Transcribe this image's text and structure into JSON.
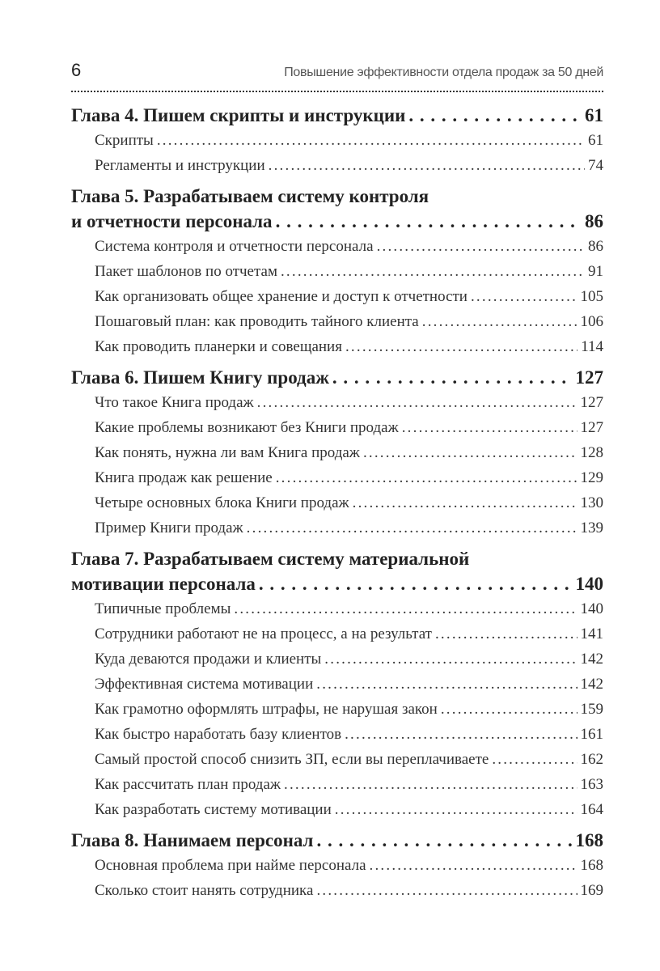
{
  "header": {
    "page_number": "6",
    "running_title": "Повышение эффективности отдела продаж за 50 дней"
  },
  "chapters": [
    {
      "title_lines": [
        "Глава 4. Пишем скрипты и инструкции"
      ],
      "page": "61",
      "entries": [
        {
          "title": "Скрипты",
          "page": "61"
        },
        {
          "title": "Регламенты и инструкции",
          "page": "74"
        }
      ]
    },
    {
      "title_lines": [
        "Глава 5. Разрабатываем систему контроля",
        "и отчетности персонала"
      ],
      "page": "86",
      "entries": [
        {
          "title": "Система контроля и отчетности персонала",
          "page": "86"
        },
        {
          "title": "Пакет шаблонов по отчетам",
          "page": "91"
        },
        {
          "title": "Как организовать общее хранение и доступ к отчетности",
          "page": "105"
        },
        {
          "title": "Пошаговый план: как проводить тайного клиента",
          "page": "106"
        },
        {
          "title": "Как проводить планерки и совещания",
          "page": "114"
        }
      ]
    },
    {
      "title_lines": [
        "Глава 6. Пишем Книгу продаж"
      ],
      "page": "127",
      "entries": [
        {
          "title": "Что такое Книга продаж",
          "page": "127"
        },
        {
          "title": "Какие проблемы возникают без Книги продаж",
          "page": "127"
        },
        {
          "title": "Как понять, нужна ли вам Книга продаж",
          "page": "128"
        },
        {
          "title": "Книга продаж как решение",
          "page": "129"
        },
        {
          "title": "Четыре основных блока Книги продаж",
          "page": "130"
        },
        {
          "title": "Пример Книги продаж",
          "page": "139"
        }
      ]
    },
    {
      "title_lines": [
        "Глава 7. Разрабатываем систему материальной",
        "мотивации персонала"
      ],
      "page": "140",
      "entries": [
        {
          "title": "Типичные проблемы",
          "page": "140"
        },
        {
          "title": "Сотрудники работают не на процесс, а на результат",
          "page": "141"
        },
        {
          "title": "Куда деваются продажи и клиенты",
          "page": "142"
        },
        {
          "title": "Эффективная система мотивации",
          "page": "142"
        },
        {
          "title": "Как грамотно оформлять штрафы, не нарушая закон",
          "page": "159"
        },
        {
          "title": "Как быстро наработать базу клиентов",
          "page": "161"
        },
        {
          "title": "Самый простой способ снизить ЗП, если вы переплачиваете",
          "page": "162"
        },
        {
          "title": "Как рассчитать план продаж",
          "page": "163"
        },
        {
          "title": "Как разработать систему мотивации",
          "page": "164"
        }
      ]
    },
    {
      "title_lines": [
        "Глава 8. Нанимаем персонал"
      ],
      "page": "168",
      "entries": [
        {
          "title": "Основная проблема при найме персонала",
          "page": "168"
        },
        {
          "title": "Сколько стоит нанять сотрудника",
          "page": "169"
        }
      ]
    }
  ]
}
